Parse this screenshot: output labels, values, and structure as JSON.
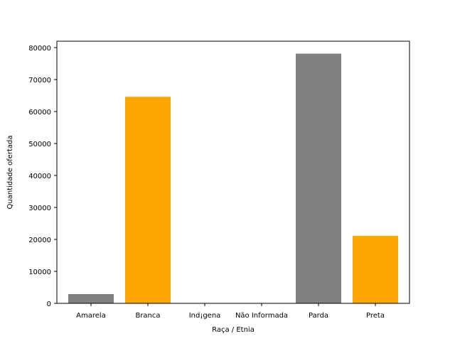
{
  "chart_data": {
    "type": "bar",
    "title": "",
    "xlabel": "Raça / Etnia",
    "ylabel": "Quantidade ofertada",
    "categories": [
      "Amarela",
      "Branca",
      "Ind¡gena",
      "Não Informada",
      "Parda",
      "Preta"
    ],
    "values": [
      2900,
      64600,
      60,
      80,
      78100,
      21100
    ],
    "colors": [
      "#808080",
      "#ffa500",
      "#808080",
      "#ffa500",
      "#808080",
      "#ffa500"
    ],
    "ylim": [
      0,
      82000
    ],
    "yticks": [
      0,
      10000,
      20000,
      30000,
      40000,
      50000,
      60000,
      70000,
      80000
    ],
    "grid": false,
    "legend": "none"
  }
}
